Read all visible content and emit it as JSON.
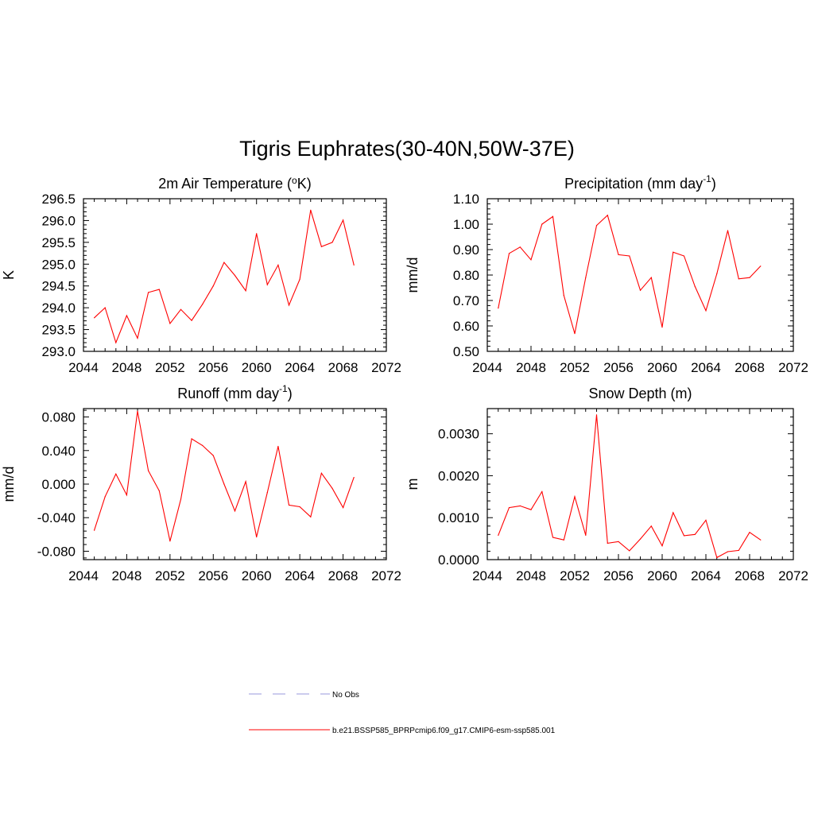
{
  "title": "Tigris Euphrates(30-40N,50W-37E)",
  "colors": {
    "series": "#ff0000",
    "obs": "#9999dd",
    "axis": "#000000"
  },
  "legend": [
    {
      "label": "No Obs",
      "style": "dashed",
      "color": "#9999dd"
    },
    {
      "label": "b.e21.BSSP585_BPRPcmip6.f09_g17.CMIP6-esm-ssp585.001",
      "style": "solid",
      "color": "#ff0000"
    }
  ],
  "chart_data": [
    {
      "type": "line",
      "title": "2m Air Temperature (",
      "title_sup": "o",
      "title_after": "K)",
      "title_sup_pos": "mid",
      "ylabel": "K",
      "xlim": [
        2044,
        2072
      ],
      "xticks": [
        "2044",
        "2048",
        "2052",
        "2056",
        "2060",
        "2064",
        "2068",
        "2072"
      ],
      "ylim": [
        293.0,
        296.5
      ],
      "yticks": [
        "293.0",
        "293.5",
        "294.0",
        "294.5",
        "295.0",
        "295.5",
        "296.0",
        "296.5"
      ],
      "minor_y": 0.1,
      "x": [
        2045,
        2046,
        2047,
        2048,
        2049,
        2050,
        2051,
        2052,
        2053,
        2054,
        2055,
        2056,
        2057,
        2058,
        2059,
        2060,
        2061,
        2062,
        2063,
        2064,
        2065,
        2066,
        2067,
        2068,
        2069
      ],
      "y": [
        293.77,
        294.0,
        293.2,
        293.82,
        293.3,
        294.35,
        294.42,
        293.64,
        293.96,
        293.71,
        294.08,
        294.5,
        295.04,
        294.74,
        294.39,
        295.7,
        294.53,
        294.98,
        294.06,
        294.65,
        296.24,
        295.4,
        295.5,
        296.01,
        294.98
      ]
    },
    {
      "type": "line",
      "title": "Precipitation (mm day",
      "title_sup": "-1",
      "title_after": ")",
      "title_sup_pos": "upper",
      "ylabel": "mm/d",
      "xlim": [
        2044,
        2072
      ],
      "xticks": [
        "2044",
        "2048",
        "2052",
        "2056",
        "2060",
        "2064",
        "2068",
        "2072"
      ],
      "ylim": [
        0.5,
        1.1
      ],
      "yticks": [
        "0.50",
        "0.60",
        "0.70",
        "0.80",
        "0.90",
        "1.00",
        "1.10"
      ],
      "minor_y": 0.02,
      "x": [
        2045,
        2046,
        2047,
        2048,
        2049,
        2050,
        2051,
        2052,
        2053,
        2054,
        2055,
        2056,
        2057,
        2058,
        2059,
        2060,
        2061,
        2062,
        2063,
        2064,
        2065,
        2066,
        2067,
        2068,
        2069
      ],
      "y": [
        0.67,
        0.885,
        0.91,
        0.86,
        1.0,
        1.03,
        0.72,
        0.57,
        0.79,
        0.995,
        1.035,
        0.88,
        0.875,
        0.74,
        0.79,
        0.595,
        0.89,
        0.875,
        0.755,
        0.66,
        0.805,
        0.975,
        0.785,
        0.79,
        0.835
      ]
    },
    {
      "type": "line",
      "title": "Runoff (mm day",
      "title_sup": "-1",
      "title_after": ")",
      "title_sup_pos": "upper",
      "ylabel": "mm/d",
      "xlim": [
        2044,
        2072
      ],
      "xticks": [
        "2044",
        "2048",
        "2052",
        "2056",
        "2060",
        "2064",
        "2068",
        "2072"
      ],
      "ylim": [
        -0.09,
        0.09
      ],
      "yticks": [
        "-0.080",
        "-0.040",
        "0.000",
        "0.040",
        "0.080"
      ],
      "ytick_values": [
        -0.08,
        -0.04,
        0.0,
        0.04,
        0.08
      ],
      "minor_y": 0.008,
      "x": [
        2045,
        2046,
        2047,
        2048,
        2049,
        2050,
        2051,
        2052,
        2053,
        2054,
        2055,
        2056,
        2057,
        2058,
        2059,
        2060,
        2061,
        2062,
        2063,
        2064,
        2065,
        2066,
        2067,
        2068,
        2069
      ],
      "y": [
        -0.055,
        -0.015,
        0.012,
        -0.013,
        0.087,
        0.016,
        -0.008,
        -0.068,
        -0.018,
        0.054,
        0.046,
        0.034,
        0.0,
        -0.032,
        0.003,
        -0.063,
        -0.01,
        0.045,
        -0.025,
        -0.027,
        -0.039,
        0.013,
        -0.005,
        -0.028,
        0.008
      ]
    },
    {
      "type": "line",
      "title": "Snow Depth (m)",
      "title_sup": "",
      "title_after": "",
      "title_sup_pos": "none",
      "ylabel": "m",
      "xlim": [
        2044,
        2072
      ],
      "xticks": [
        "2044",
        "2048",
        "2052",
        "2056",
        "2060",
        "2064",
        "2068",
        "2072"
      ],
      "ylim": [
        0.0,
        0.0036
      ],
      "yticks": [
        "0.0000",
        "0.0010",
        "0.0020",
        "0.0030"
      ],
      "ytick_values": [
        0.0,
        0.001,
        0.002,
        0.003
      ],
      "minor_y": 0.0002,
      "x": [
        2045,
        2046,
        2047,
        2048,
        2049,
        2050,
        2051,
        2052,
        2053,
        2054,
        2055,
        2056,
        2057,
        2058,
        2059,
        2060,
        2061,
        2062,
        2063,
        2064,
        2065,
        2066,
        2067,
        2068,
        2069
      ],
      "y": [
        0.00058,
        0.00124,
        0.00128,
        0.00119,
        0.00162,
        0.00053,
        0.00047,
        0.0015,
        0.00058,
        0.00345,
        0.00039,
        0.00043,
        0.00021,
        0.00049,
        0.0008,
        0.00033,
        0.00112,
        0.00057,
        0.0006,
        0.00094,
        5e-05,
        0.00019,
        0.00022,
        0.00065,
        0.00047
      ]
    }
  ]
}
